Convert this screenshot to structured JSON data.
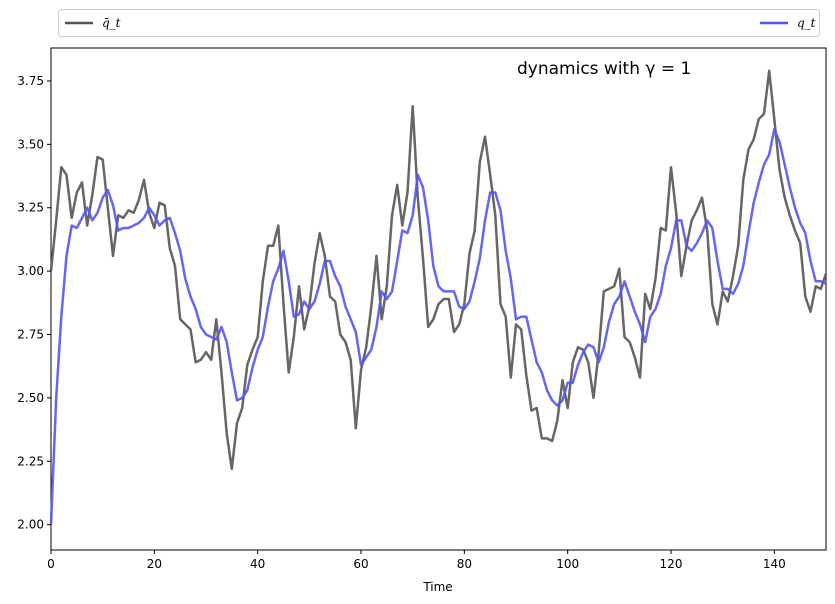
{
  "chart_data": {
    "type": "line",
    "title": "",
    "annotation": "dynamics with γ = 1",
    "xlabel": "Time",
    "ylabel": "",
    "xlim": [
      0,
      150
    ],
    "ylim": [
      1.9,
      3.88
    ],
    "xticks": [
      0,
      20,
      40,
      60,
      80,
      100,
      120,
      140
    ],
    "yticks": [
      2.0,
      2.25,
      2.5,
      2.75,
      3.0,
      3.25,
      3.5,
      3.75
    ],
    "xtick_labels": [
      "0",
      "20",
      "40",
      "60",
      "80",
      "100",
      "120",
      "140"
    ],
    "ytick_labels": [
      "2.00",
      "2.25",
      "2.50",
      "2.75",
      "3.00",
      "3.25",
      "3.50",
      "3.75"
    ],
    "grid": false,
    "legend_position": "top, outside plot area",
    "series": [
      {
        "name": "q̄_t",
        "color": "#555555",
        "x": [
          0,
          1,
          2,
          3,
          4,
          5,
          6,
          7,
          8,
          9,
          10,
          11,
          12,
          13,
          14,
          15,
          16,
          17,
          18,
          19,
          20,
          21,
          22,
          23,
          24,
          25,
          26,
          27,
          28,
          29,
          30,
          31,
          32,
          33,
          34,
          35,
          36,
          37,
          38,
          39,
          40,
          41,
          42,
          43,
          44,
          45,
          46,
          47,
          48,
          49,
          50,
          51,
          52,
          53,
          54,
          55,
          56,
          57,
          58,
          59,
          60,
          61,
          62,
          63,
          64,
          65,
          66,
          67,
          68,
          69,
          70,
          71,
          72,
          73,
          74,
          75,
          76,
          77,
          78,
          79,
          80,
          81,
          82,
          83,
          84,
          85,
          86,
          87,
          88,
          89,
          90,
          91,
          92,
          93,
          94,
          95,
          96,
          97,
          98,
          99,
          100,
          101,
          102,
          103,
          104,
          105,
          106,
          107,
          108,
          109,
          110,
          111,
          112,
          113,
          114,
          115,
          116,
          117,
          118,
          119,
          120,
          121,
          122,
          123,
          124,
          125,
          126,
          127,
          128,
          129,
          130,
          131,
          132,
          133,
          134,
          135,
          136,
          137,
          138,
          139,
          140,
          141,
          142,
          143,
          144,
          145,
          146,
          147,
          148,
          149,
          150
        ],
        "values": [
          3.0,
          3.2,
          3.41,
          3.38,
          3.21,
          3.31,
          3.35,
          3.18,
          3.3,
          3.45,
          3.44,
          3.25,
          3.06,
          3.22,
          3.21,
          3.24,
          3.23,
          3.28,
          3.36,
          3.23,
          3.17,
          3.27,
          3.26,
          3.09,
          3.02,
          2.81,
          2.79,
          2.77,
          2.64,
          2.65,
          2.68,
          2.65,
          2.81,
          2.6,
          2.36,
          2.22,
          2.4,
          2.46,
          2.63,
          2.69,
          2.74,
          2.96,
          3.1,
          3.1,
          3.18,
          2.87,
          2.6,
          2.74,
          2.94,
          2.77,
          2.86,
          3.03,
          3.15,
          3.06,
          2.9,
          2.88,
          2.75,
          2.72,
          2.65,
          2.38,
          2.61,
          2.7,
          2.86,
          3.06,
          2.81,
          2.94,
          3.22,
          3.34,
          3.18,
          3.31,
          3.65,
          3.29,
          3.05,
          2.78,
          2.81,
          2.87,
          2.89,
          2.89,
          2.76,
          2.79,
          2.87,
          3.07,
          3.16,
          3.43,
          3.53,
          3.38,
          3.22,
          2.87,
          2.82,
          2.58,
          2.79,
          2.77,
          2.59,
          2.45,
          2.46,
          2.34,
          2.34,
          2.33,
          2.41,
          2.57,
          2.46,
          2.64,
          2.7,
          2.69,
          2.64,
          2.5,
          2.68,
          2.92,
          2.93,
          2.94,
          3.01,
          2.74,
          2.72,
          2.66,
          2.58,
          2.91,
          2.85,
          2.97,
          3.17,
          3.16,
          3.41,
          3.23,
          2.98,
          3.1,
          3.2,
          3.24,
          3.29,
          3.16,
          2.87,
          2.79,
          2.92,
          2.88,
          2.98,
          3.1,
          3.36,
          3.48,
          3.52,
          3.6,
          3.62,
          3.79,
          3.6,
          3.4,
          3.29,
          3.22,
          3.16,
          3.11,
          2.9,
          2.84,
          2.94,
          2.93,
          2.99
        ]
      },
      {
        "name": "q_t",
        "color": "#5555ee",
        "x": [
          0,
          1,
          2,
          3,
          4,
          5,
          6,
          7,
          8,
          9,
          10,
          11,
          12,
          13,
          14,
          15,
          16,
          17,
          18,
          19,
          20,
          21,
          22,
          23,
          24,
          25,
          26,
          27,
          28,
          29,
          30,
          31,
          32,
          33,
          34,
          35,
          36,
          37,
          38,
          39,
          40,
          41,
          42,
          43,
          44,
          45,
          46,
          47,
          48,
          49,
          50,
          51,
          52,
          53,
          54,
          55,
          56,
          57,
          58,
          59,
          60,
          61,
          62,
          63,
          64,
          65,
          66,
          67,
          68,
          69,
          70,
          71,
          72,
          73,
          74,
          75,
          76,
          77,
          78,
          79,
          80,
          81,
          82,
          83,
          84,
          85,
          86,
          87,
          88,
          89,
          90,
          91,
          92,
          93,
          94,
          95,
          96,
          97,
          98,
          99,
          100,
          101,
          102,
          103,
          104,
          105,
          106,
          107,
          108,
          109,
          110,
          111,
          112,
          113,
          114,
          115,
          116,
          117,
          118,
          119,
          120,
          121,
          122,
          123,
          124,
          125,
          126,
          127,
          128,
          129,
          130,
          131,
          132,
          133,
          134,
          135,
          136,
          137,
          138,
          139,
          140,
          141,
          142,
          143,
          144,
          145,
          146,
          147,
          148,
          149,
          150
        ],
        "values": [
          2.0,
          2.5,
          2.82,
          3.06,
          3.18,
          3.17,
          3.21,
          3.25,
          3.2,
          3.23,
          3.29,
          3.32,
          3.26,
          3.16,
          3.17,
          3.17,
          3.18,
          3.19,
          3.21,
          3.25,
          3.22,
          3.18,
          3.2,
          3.21,
          3.15,
          3.08,
          2.97,
          2.9,
          2.85,
          2.78,
          2.75,
          2.74,
          2.73,
          2.78,
          2.72,
          2.6,
          2.49,
          2.5,
          2.53,
          2.62,
          2.69,
          2.74,
          2.86,
          2.96,
          3.01,
          3.08,
          2.96,
          2.82,
          2.83,
          2.88,
          2.85,
          2.88,
          2.95,
          3.04,
          3.04,
          2.98,
          2.94,
          2.86,
          2.81,
          2.76,
          2.63,
          2.66,
          2.69,
          2.78,
          2.92,
          2.89,
          2.92,
          3.04,
          3.16,
          3.15,
          3.22,
          3.38,
          3.33,
          3.2,
          3.02,
          2.94,
          2.92,
          2.92,
          2.92,
          2.86,
          2.85,
          2.88,
          2.96,
          3.05,
          3.2,
          3.31,
          3.31,
          3.24,
          3.08,
          2.97,
          2.81,
          2.82,
          2.82,
          2.73,
          2.64,
          2.6,
          2.53,
          2.49,
          2.47,
          2.49,
          2.56,
          2.56,
          2.63,
          2.68,
          2.71,
          2.7,
          2.64,
          2.7,
          2.8,
          2.87,
          2.9,
          2.96,
          2.9,
          2.84,
          2.79,
          2.72,
          2.82,
          2.85,
          2.91,
          3.02,
          3.09,
          3.2,
          3.2,
          3.1,
          3.08,
          3.11,
          3.15,
          3.2,
          3.17,
          3.04,
          2.93,
          2.93,
          2.91,
          2.95,
          3.02,
          3.15,
          3.27,
          3.35,
          3.42,
          3.46,
          3.56,
          3.51,
          3.42,
          3.33,
          3.25,
          3.19,
          3.15,
          3.04,
          2.96,
          2.96,
          2.95
        ]
      }
    ]
  }
}
